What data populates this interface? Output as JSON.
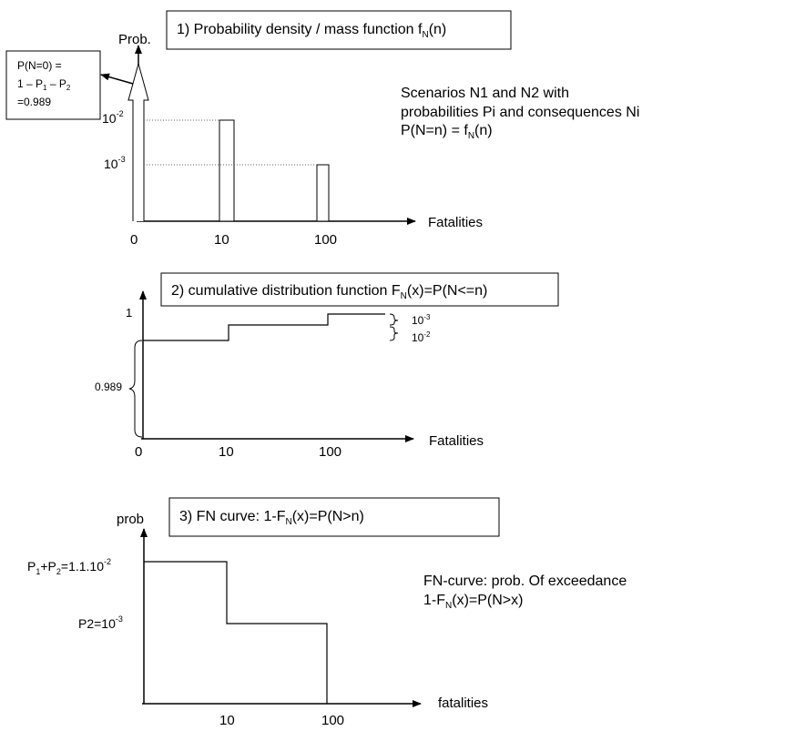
{
  "panel1": {
    "title_main": "1) Probability density / mass function f",
    "title_sub": "N",
    "title_end": "(n)",
    "y_label": "Prob.",
    "x_label": "Fatalities",
    "x_ticks": [
      "0",
      "10",
      "100"
    ],
    "y_tick_high_base": "10",
    "y_tick_high_exp": "-2",
    "y_tick_low_base": "10",
    "y_tick_low_exp": "-3",
    "callout": {
      "line1": "P(N=0) =",
      "line2_a": "1 – P",
      "line2_s1": "1",
      "line2_b": " – P",
      "line2_s2": "2",
      "line3": "=0.989"
    },
    "note_line1": "Scenarios N1 and N2 with",
    "note_line2": "probabilities Pi and consequences Ni",
    "note_line3_a": "P(N=n) = f",
    "note_line3_sub": "N",
    "note_line3_b": "(n)"
  },
  "panel2": {
    "title_main": "2) cumulative distribution function F",
    "title_sub": "N",
    "title_end": "(x)=P(N<=n)",
    "y_tick_one": "1",
    "y_brace_label": "0.989",
    "step_label_top_base": "10",
    "step_label_top_exp": "-3",
    "step_label_bot_base": "10",
    "step_label_bot_exp": "-2",
    "x_label": "Fatalities",
    "x_ticks": [
      "0",
      "10",
      "100"
    ]
  },
  "panel3": {
    "title_main": "3) FN curve: 1-F",
    "title_sub": "N",
    "title_end": "(x)=P(N>n)",
    "y_label": "prob",
    "label_top_a": "P",
    "label_top_s1": "1",
    "label_top_b": "+P",
    "label_top_s2": "2",
    "label_top_c": "=1.1.10",
    "label_top_exp": "-2",
    "label_low_a": "P2=10",
    "label_low_exp": "-3",
    "note_line1": "FN-curve: prob. Of exceedance",
    "note_line2_a": "1-F",
    "note_line2_sub": "N",
    "note_line2_b": "(x)=P(N>x)",
    "x_label": "fatalities",
    "x_ticks": [
      "10",
      "100"
    ]
  },
  "colors": {
    "line": "#000000",
    "dotted": "#666666",
    "background": "#ffffff"
  }
}
